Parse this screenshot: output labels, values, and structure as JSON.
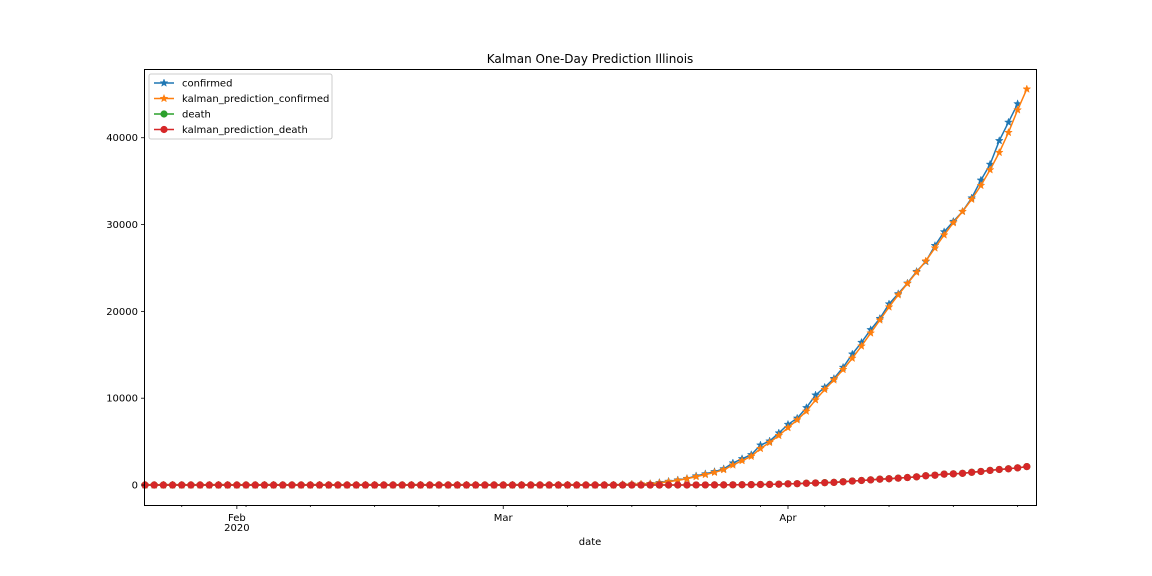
{
  "chart_data": {
    "type": "line",
    "title": "Kalman One-Day Prediction Illinois",
    "xlabel": "date",
    "ylabel": "",
    "x_start": "2020-01-22",
    "x_end": "2020-04-28",
    "xlim": [
      "2020-01-22",
      "2020-04-28"
    ],
    "ylim": [
      -2300,
      47800
    ],
    "grid": false,
    "legend_position": "top-left",
    "x_ticks": [
      {
        "date": "2020-02-01",
        "label": "Feb",
        "sublabel": "2020"
      },
      {
        "date": "2020-03-01",
        "label": "Mar",
        "sublabel": ""
      },
      {
        "date": "2020-04-01",
        "label": "Apr",
        "sublabel": ""
      }
    ],
    "y_ticks": [
      0,
      10000,
      20000,
      30000,
      40000
    ],
    "series": [
      {
        "name": "confirmed",
        "marker": "star",
        "color": "#1f77b4",
        "start": "2020-03-14",
        "values": [
          64,
          93,
          105,
          160,
          288,
          422,
          585,
          753,
          1049,
          1285,
          1535,
          1865,
          2538,
          3026,
          3491,
          4596,
          5057,
          5994,
          6980,
          7695,
          8904,
          10357,
          11256,
          12262,
          13549,
          15078,
          16422,
          17887,
          19180,
          20852,
          22025,
          23247,
          24593,
          25733,
          27575,
          29160,
          30357,
          31508,
          33059,
          35108,
          36934,
          39658,
          41777,
          43903
        ]
      },
      {
        "name": "kalman_prediction_confirmed",
        "marker": "star",
        "color": "#ff7f0e",
        "start": "2020-03-14",
        "values": [
          50,
          85,
          110,
          145,
          240,
          380,
          540,
          720,
          960,
          1200,
          1450,
          1760,
          2300,
          2800,
          3300,
          4200,
          4900,
          5700,
          6600,
          7500,
          8500,
          9800,
          11000,
          12100,
          13300,
          14600,
          16000,
          17500,
          19000,
          20500,
          21900,
          23200,
          24500,
          25800,
          27300,
          28800,
          30200,
          31500,
          32900,
          34500,
          36300,
          38300,
          40600,
          43200,
          45600
        ]
      },
      {
        "name": "death",
        "marker": "circle",
        "color": "#2ca02c",
        "start": "2020-03-19",
        "values": [
          4,
          5,
          6,
          9,
          12,
          16,
          19,
          26,
          34,
          47,
          66,
          73,
          99,
          141,
          157,
          210,
          243,
          274,
          307,
          380,
          462,
          528,
          596,
          677,
          726,
          794,
          868,
          948,
          1072,
          1134,
          1259,
          1290,
          1349,
          1468,
          1565,
          1688,
          1795,
          1874,
          1983,
          2125
        ]
      },
      {
        "name": "kalman_prediction_death",
        "marker": "circle",
        "color": "#d62728",
        "start": "2020-03-19",
        "values": [
          3,
          5,
          6,
          8,
          11,
          15,
          18,
          24,
          32,
          44,
          62,
          71,
          94,
          134,
          153,
          203,
          238,
          270,
          303,
          372,
          455,
          522,
          590,
          671,
          722,
          790,
          864,
          943,
          1066,
          1130,
          1253,
          1288,
          1346,
          1463,
          1560,
          1683,
          1790,
          1870,
          1978,
          2120
        ]
      }
    ]
  }
}
